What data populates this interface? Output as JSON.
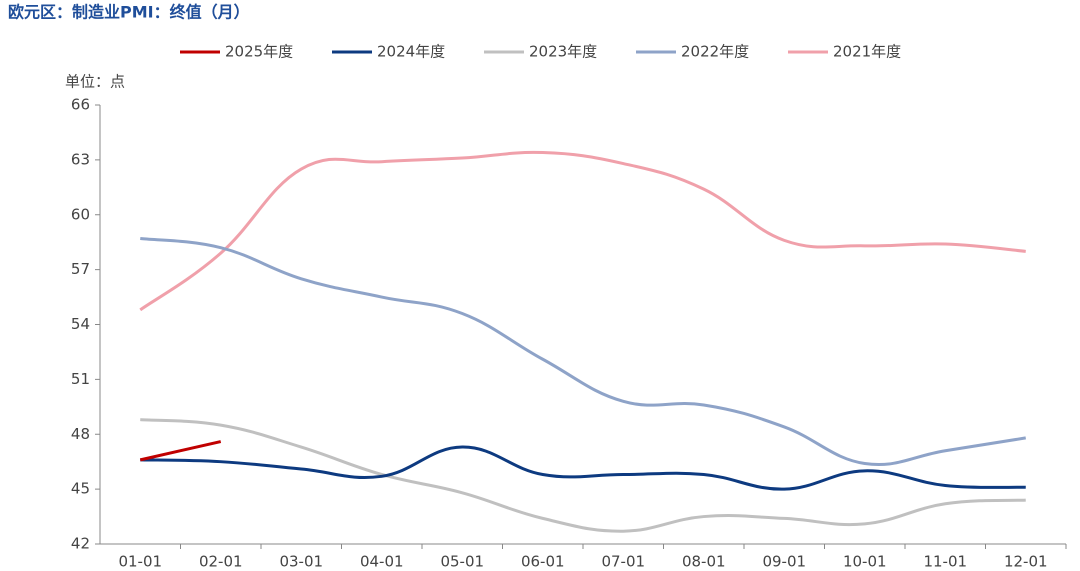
{
  "chart_data": {
    "type": "line",
    "title": "欧元区：制造业PMI：终值（月）",
    "y_label": "单位：点",
    "categories": [
      "01-01",
      "02-01",
      "03-01",
      "04-01",
      "05-01",
      "06-01",
      "07-01",
      "08-01",
      "09-01",
      "10-01",
      "11-01",
      "12-01"
    ],
    "series": [
      {
        "name": "2025年度",
        "color": "#c00000",
        "values": [
          46.6,
          47.6,
          null,
          null,
          null,
          null,
          null,
          null,
          null,
          null,
          null,
          null
        ]
      },
      {
        "name": "2024年度",
        "color": "#0d3a80",
        "values": [
          46.6,
          46.5,
          46.1,
          45.7,
          47.3,
          45.8,
          45.8,
          45.8,
          45.0,
          46.0,
          45.2,
          45.1
        ]
      },
      {
        "name": "2023年度",
        "color": "#c0c0c0",
        "values": [
          48.8,
          48.5,
          47.3,
          45.8,
          44.8,
          43.4,
          42.7,
          43.5,
          43.4,
          43.1,
          44.2,
          44.4
        ]
      },
      {
        "name": "2022年度",
        "color": "#8ea3c8",
        "values": [
          58.7,
          58.2,
          56.5,
          55.5,
          54.6,
          52.1,
          49.8,
          49.6,
          48.4,
          46.4,
          47.1,
          47.8
        ]
      },
      {
        "name": "2021年度",
        "color": "#f0a0aa",
        "values": [
          54.8,
          57.9,
          62.5,
          62.9,
          63.1,
          63.4,
          62.8,
          61.4,
          58.6,
          58.3,
          58.4,
          58.0
        ]
      }
    ],
    "ylim": [
      42,
      66
    ],
    "yticks": [
      42,
      45,
      48,
      51,
      54,
      57,
      60,
      63,
      66
    ],
    "grid": false,
    "legend": "top"
  }
}
